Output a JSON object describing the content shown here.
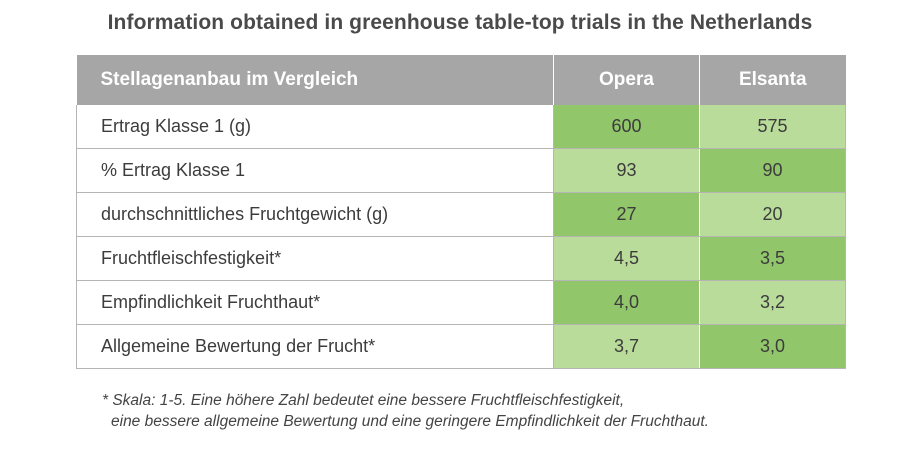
{
  "title": "Information obtained in greenhouse table-top trials in the Netherlands",
  "table": {
    "headers": [
      "Stellagenanbau im Vergleich",
      "Opera",
      "Elsanta"
    ],
    "rows": [
      {
        "label": "Ertrag Klasse 1  (g)",
        "opera": "600",
        "elsanta": "575",
        "opera_shade": "dark",
        "elsanta_shade": "light"
      },
      {
        "label": "% Ertrag Klasse 1",
        "opera": "93",
        "elsanta": "90",
        "opera_shade": "light",
        "elsanta_shade": "dark"
      },
      {
        "label": "durchschnittliches Fruchtgewicht (g)",
        "opera": "27",
        "elsanta": "20",
        "opera_shade": "dark",
        "elsanta_shade": "light"
      },
      {
        "label": "Fruchtfleischfestigkeit*",
        "opera": "4,5",
        "elsanta": "3,5",
        "opera_shade": "light",
        "elsanta_shade": "dark"
      },
      {
        "label": "Empfindlichkeit Fruchthaut*",
        "opera": "4,0",
        "elsanta": "3,2",
        "opera_shade": "dark",
        "elsanta_shade": "light"
      },
      {
        "label": "Allgemeine Bewertung der Frucht*",
        "opera": "3,7",
        "elsanta": "3,0",
        "opera_shade": "light",
        "elsanta_shade": "dark"
      }
    ]
  },
  "footnote": {
    "line1": "* Skala: 1-5. Eine höhere Zahl bedeutet eine bessere Fruchtfleischfestigkeit,",
    "line2": "eine bessere allgemeine Bewertung und eine geringere Empfindlichkeit der Fruchthaut."
  },
  "colors": {
    "header_bg": "#a6a6a6",
    "cell_dark": "#92c66a",
    "cell_light": "#b9dc9b"
  }
}
